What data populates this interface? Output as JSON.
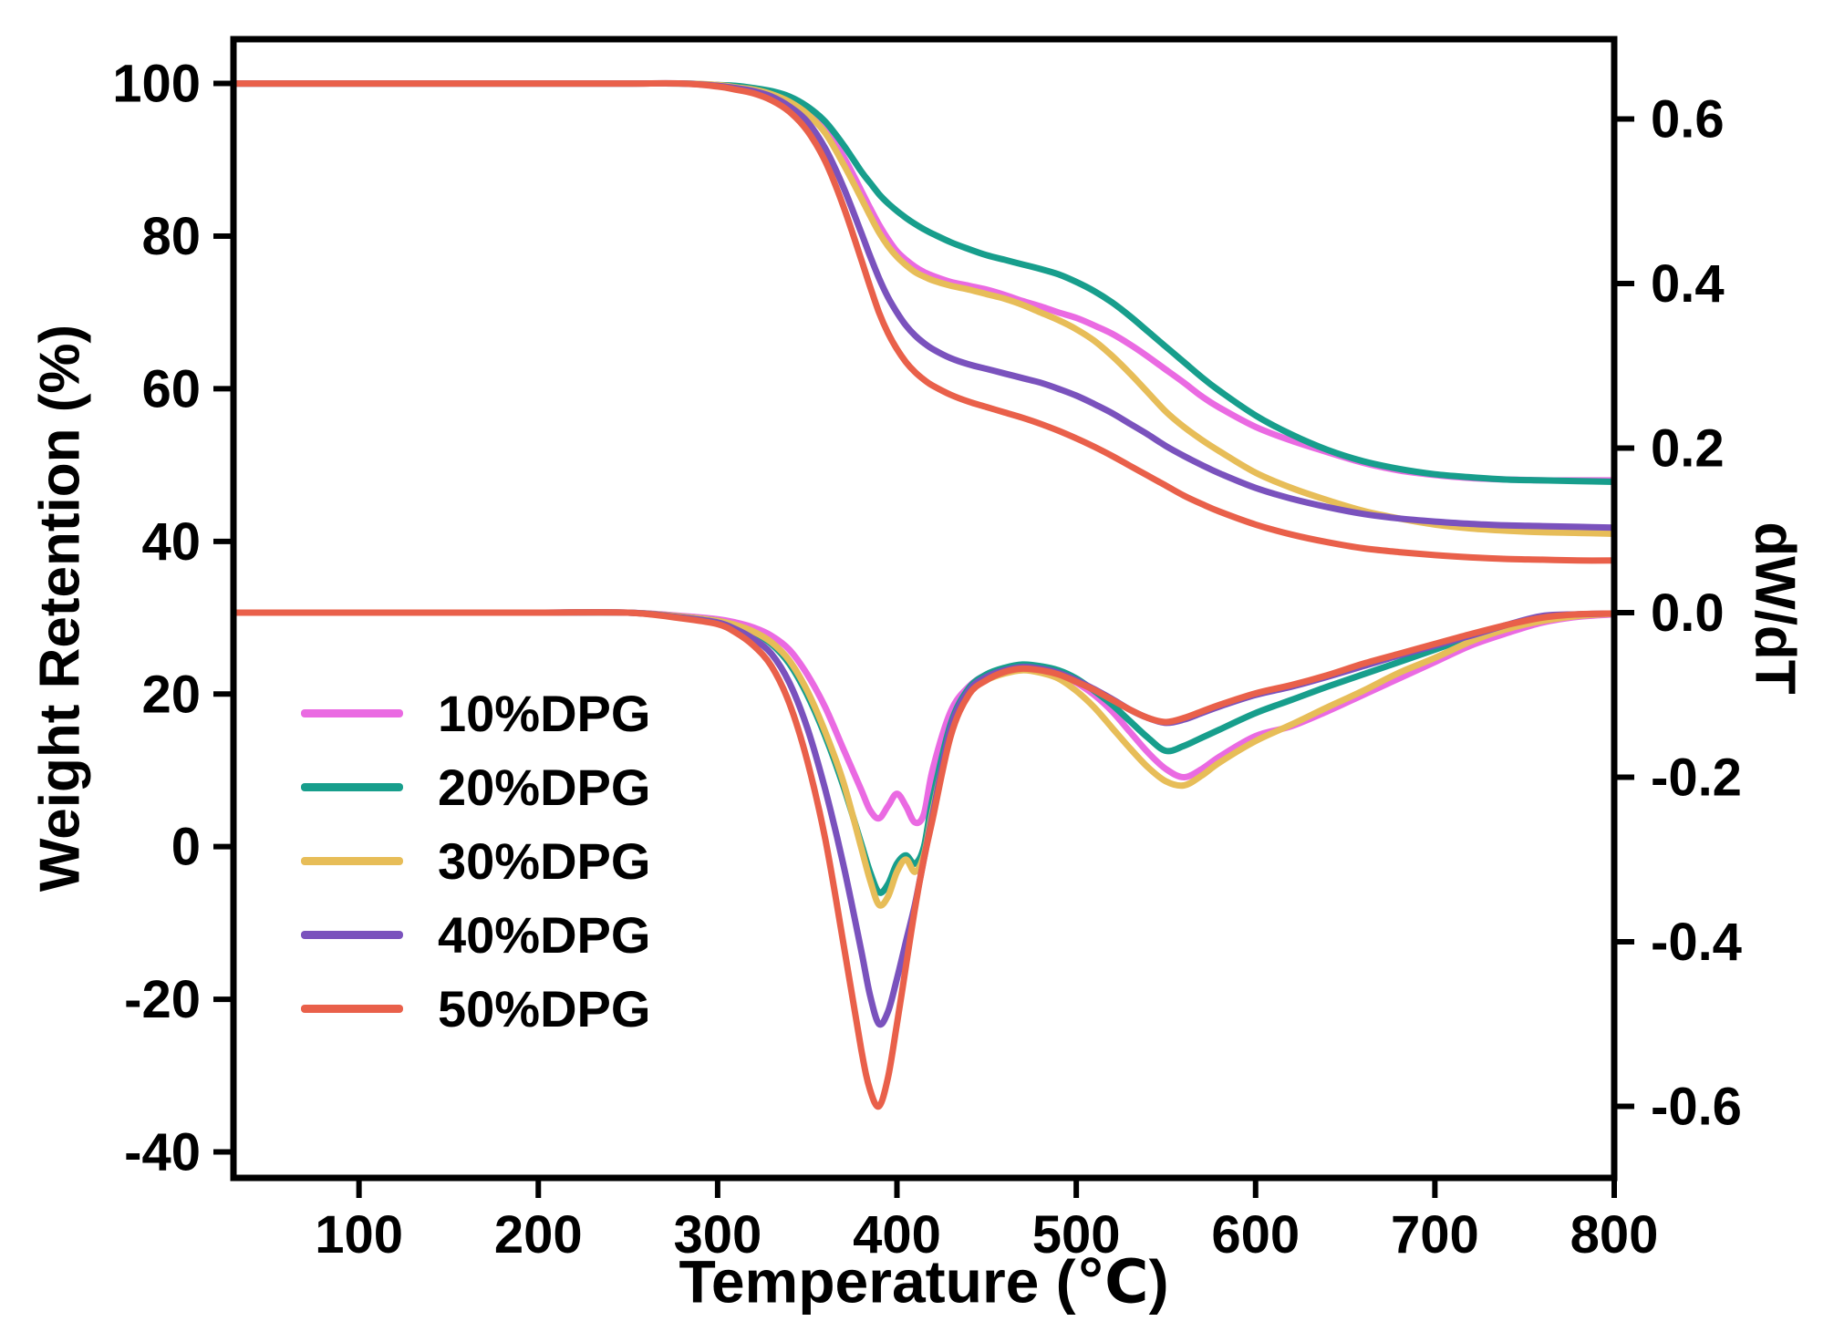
{
  "figure": {
    "title": ""
  },
  "chart_data": {
    "type": "line",
    "title": "",
    "xlabel": "Temperature (℃)",
    "ylabel_left": "Weight Retention (%)",
    "ylabel_right": "dW/dT",
    "xlim": [
      30,
      800
    ],
    "ylim_left": [
      -43.4,
      105.8
    ],
    "ylim_right": [
      -0.687,
      0.697
    ],
    "x_ticks": [
      100,
      200,
      300,
      400,
      500,
      600,
      700,
      800
    ],
    "y_ticks_left": [
      -40,
      -20,
      0,
      20,
      40,
      60,
      80,
      100
    ],
    "y_ticks_right": [
      -0.6,
      -0.4,
      -0.2,
      0.0,
      0.2,
      0.4,
      0.6
    ],
    "grid": false,
    "legend_position": "inside-left-middle",
    "x": [
      30,
      100,
      150,
      200,
      250,
      280,
      300,
      310,
      320,
      330,
      340,
      350,
      360,
      370,
      380,
      385,
      390,
      395,
      400,
      405,
      410,
      415,
      420,
      430,
      440,
      450,
      460,
      470,
      480,
      490,
      500,
      510,
      520,
      530,
      540,
      550,
      560,
      570,
      580,
      600,
      620,
      640,
      660,
      680,
      700,
      720,
      740,
      760,
      780,
      800
    ],
    "series": [
      {
        "name": "10%DPG",
        "color": "#ea6ae2",
        "tg": [
          100,
          100,
          100,
          100,
          100,
          100,
          99.8,
          99.6,
          99.3,
          98.8,
          98.0,
          96.5,
          94.0,
          90.5,
          86.0,
          83.7,
          81.5,
          79.6,
          78.0,
          76.9,
          76.0,
          75.3,
          74.8,
          74.0,
          73.5,
          73.0,
          72.3,
          71.5,
          70.8,
          70.0,
          69.3,
          68.3,
          67.2,
          65.8,
          64.2,
          62.5,
          60.8,
          59.0,
          57.5,
          55.0,
          53.2,
          51.7,
          50.3,
          49.3,
          48.7,
          48.3,
          48.1,
          48.0,
          48.0,
          48.0
        ],
        "dtg": [
          0,
          0,
          0,
          0,
          0,
          -0.004,
          -0.008,
          -0.012,
          -0.018,
          -0.028,
          -0.045,
          -0.075,
          -0.115,
          -0.165,
          -0.215,
          -0.24,
          -0.25,
          -0.235,
          -0.22,
          -0.235,
          -0.255,
          -0.245,
          -0.19,
          -0.12,
          -0.09,
          -0.075,
          -0.068,
          -0.065,
          -0.067,
          -0.073,
          -0.085,
          -0.1,
          -0.12,
          -0.145,
          -0.17,
          -0.19,
          -0.2,
          -0.19,
          -0.175,
          -0.15,
          -0.138,
          -0.12,
          -0.1,
          -0.08,
          -0.06,
          -0.04,
          -0.025,
          -0.012,
          -0.005,
          -0.002
        ]
      },
      {
        "name": "20%DPG",
        "color": "#179e8c",
        "tg": [
          100,
          100,
          100,
          100,
          100,
          100,
          99.8,
          99.7,
          99.4,
          99.0,
          98.3,
          97.0,
          95.0,
          92.0,
          88.5,
          87.0,
          85.5,
          84.3,
          83.3,
          82.4,
          81.6,
          80.9,
          80.3,
          79.2,
          78.3,
          77.5,
          76.9,
          76.3,
          75.7,
          75.0,
          74.0,
          72.8,
          71.3,
          69.5,
          67.5,
          65.5,
          63.5,
          61.5,
          59.7,
          56.5,
          54.0,
          52.0,
          50.5,
          49.5,
          48.8,
          48.4,
          48.1,
          48.0,
          47.9,
          47.8
        ],
        "dtg": [
          0,
          0,
          0,
          0,
          0,
          -0.005,
          -0.01,
          -0.016,
          -0.024,
          -0.038,
          -0.062,
          -0.1,
          -0.15,
          -0.21,
          -0.28,
          -0.315,
          -0.34,
          -0.33,
          -0.305,
          -0.295,
          -0.305,
          -0.285,
          -0.225,
          -0.135,
          -0.092,
          -0.075,
          -0.067,
          -0.063,
          -0.065,
          -0.07,
          -0.08,
          -0.095,
          -0.112,
          -0.132,
          -0.152,
          -0.168,
          -0.162,
          -0.152,
          -0.142,
          -0.122,
          -0.106,
          -0.09,
          -0.075,
          -0.06,
          -0.045,
          -0.03,
          -0.018,
          -0.008,
          -0.003,
          -0.001
        ]
      },
      {
        "name": "30%DPG",
        "color": "#e7bd58",
        "tg": [
          100,
          100,
          100,
          100,
          100,
          100,
          99.8,
          99.5,
          99.2,
          98.6,
          97.6,
          96.0,
          93.5,
          89.5,
          85.0,
          82.7,
          80.5,
          78.7,
          77.3,
          76.2,
          75.3,
          74.7,
          74.2,
          73.5,
          73.0,
          72.4,
          71.8,
          71.0,
          70.0,
          69.0,
          67.8,
          66.3,
          64.3,
          62.0,
          59.5,
          57.0,
          55.0,
          53.3,
          51.8,
          49.0,
          47.0,
          45.4,
          44.0,
          43.0,
          42.2,
          41.7,
          41.4,
          41.2,
          41.1,
          41.0
        ],
        "dtg": [
          0,
          0,
          0,
          0,
          0,
          -0.005,
          -0.01,
          -0.015,
          -0.023,
          -0.036,
          -0.058,
          -0.095,
          -0.145,
          -0.205,
          -0.285,
          -0.325,
          -0.355,
          -0.345,
          -0.315,
          -0.3,
          -0.315,
          -0.295,
          -0.24,
          -0.145,
          -0.098,
          -0.082,
          -0.074,
          -0.07,
          -0.073,
          -0.08,
          -0.095,
          -0.115,
          -0.14,
          -0.165,
          -0.188,
          -0.205,
          -0.21,
          -0.198,
          -0.182,
          -0.156,
          -0.136,
          -0.115,
          -0.095,
          -0.073,
          -0.055,
          -0.035,
          -0.02,
          -0.01,
          -0.004,
          -0.001
        ]
      },
      {
        "name": "40%DPG",
        "color": "#7a52bd",
        "tg": [
          100,
          100,
          100,
          100,
          100,
          100,
          99.7,
          99.4,
          99.0,
          98.3,
          97.0,
          95.0,
          91.5,
          86.5,
          80.5,
          77.4,
          74.5,
          72.0,
          70.0,
          68.3,
          67.0,
          66.0,
          65.2,
          64.0,
          63.2,
          62.6,
          62.0,
          61.4,
          60.8,
          60.0,
          59.1,
          58.0,
          56.8,
          55.4,
          54.0,
          52.5,
          51.2,
          50.0,
          48.9,
          47.0,
          45.6,
          44.5,
          43.6,
          43.0,
          42.6,
          42.3,
          42.1,
          42.0,
          41.9,
          41.8
        ],
        "dtg": [
          0,
          0,
          0,
          0,
          0,
          -0.006,
          -0.012,
          -0.02,
          -0.032,
          -0.05,
          -0.085,
          -0.14,
          -0.215,
          -0.305,
          -0.41,
          -0.465,
          -0.5,
          -0.485,
          -0.445,
          -0.4,
          -0.355,
          -0.3,
          -0.245,
          -0.14,
          -0.095,
          -0.078,
          -0.07,
          -0.066,
          -0.068,
          -0.073,
          -0.082,
          -0.093,
          -0.105,
          -0.118,
          -0.128,
          -0.134,
          -0.13,
          -0.122,
          -0.114,
          -0.1,
          -0.09,
          -0.078,
          -0.065,
          -0.052,
          -0.04,
          -0.028,
          -0.015,
          -0.004,
          -0.002,
          -0.001
        ]
      },
      {
        "name": "50%DPG",
        "color": "#e9604a",
        "tg": [
          100,
          100,
          100,
          100,
          100,
          100,
          99.6,
          99.2,
          98.7,
          97.8,
          96.3,
          93.8,
          89.8,
          84.0,
          77.0,
          73.4,
          70.0,
          67.3,
          65.2,
          63.5,
          62.2,
          61.2,
          60.4,
          59.2,
          58.3,
          57.6,
          56.9,
          56.2,
          55.4,
          54.5,
          53.5,
          52.4,
          51.2,
          49.9,
          48.6,
          47.3,
          46.0,
          44.9,
          43.9,
          42.2,
          40.9,
          39.9,
          39.1,
          38.6,
          38.2,
          37.9,
          37.7,
          37.6,
          37.5,
          37.5
        ],
        "dtg": [
          0,
          0,
          0,
          0,
          0,
          -0.007,
          -0.014,
          -0.024,
          -0.04,
          -0.065,
          -0.11,
          -0.18,
          -0.275,
          -0.4,
          -0.53,
          -0.58,
          -0.6,
          -0.565,
          -0.5,
          -0.43,
          -0.36,
          -0.3,
          -0.25,
          -0.15,
          -0.1,
          -0.082,
          -0.072,
          -0.068,
          -0.07,
          -0.075,
          -0.084,
          -0.094,
          -0.106,
          -0.118,
          -0.128,
          -0.133,
          -0.128,
          -0.12,
          -0.112,
          -0.098,
          -0.088,
          -0.076,
          -0.062,
          -0.05,
          -0.038,
          -0.026,
          -0.015,
          -0.006,
          -0.002,
          -0.001
        ]
      }
    ],
    "legend": [
      "10%DPG",
      "20%DPG",
      "30%DPG",
      "40%DPG",
      "50%DPG"
    ],
    "frame_color": "#000000"
  }
}
